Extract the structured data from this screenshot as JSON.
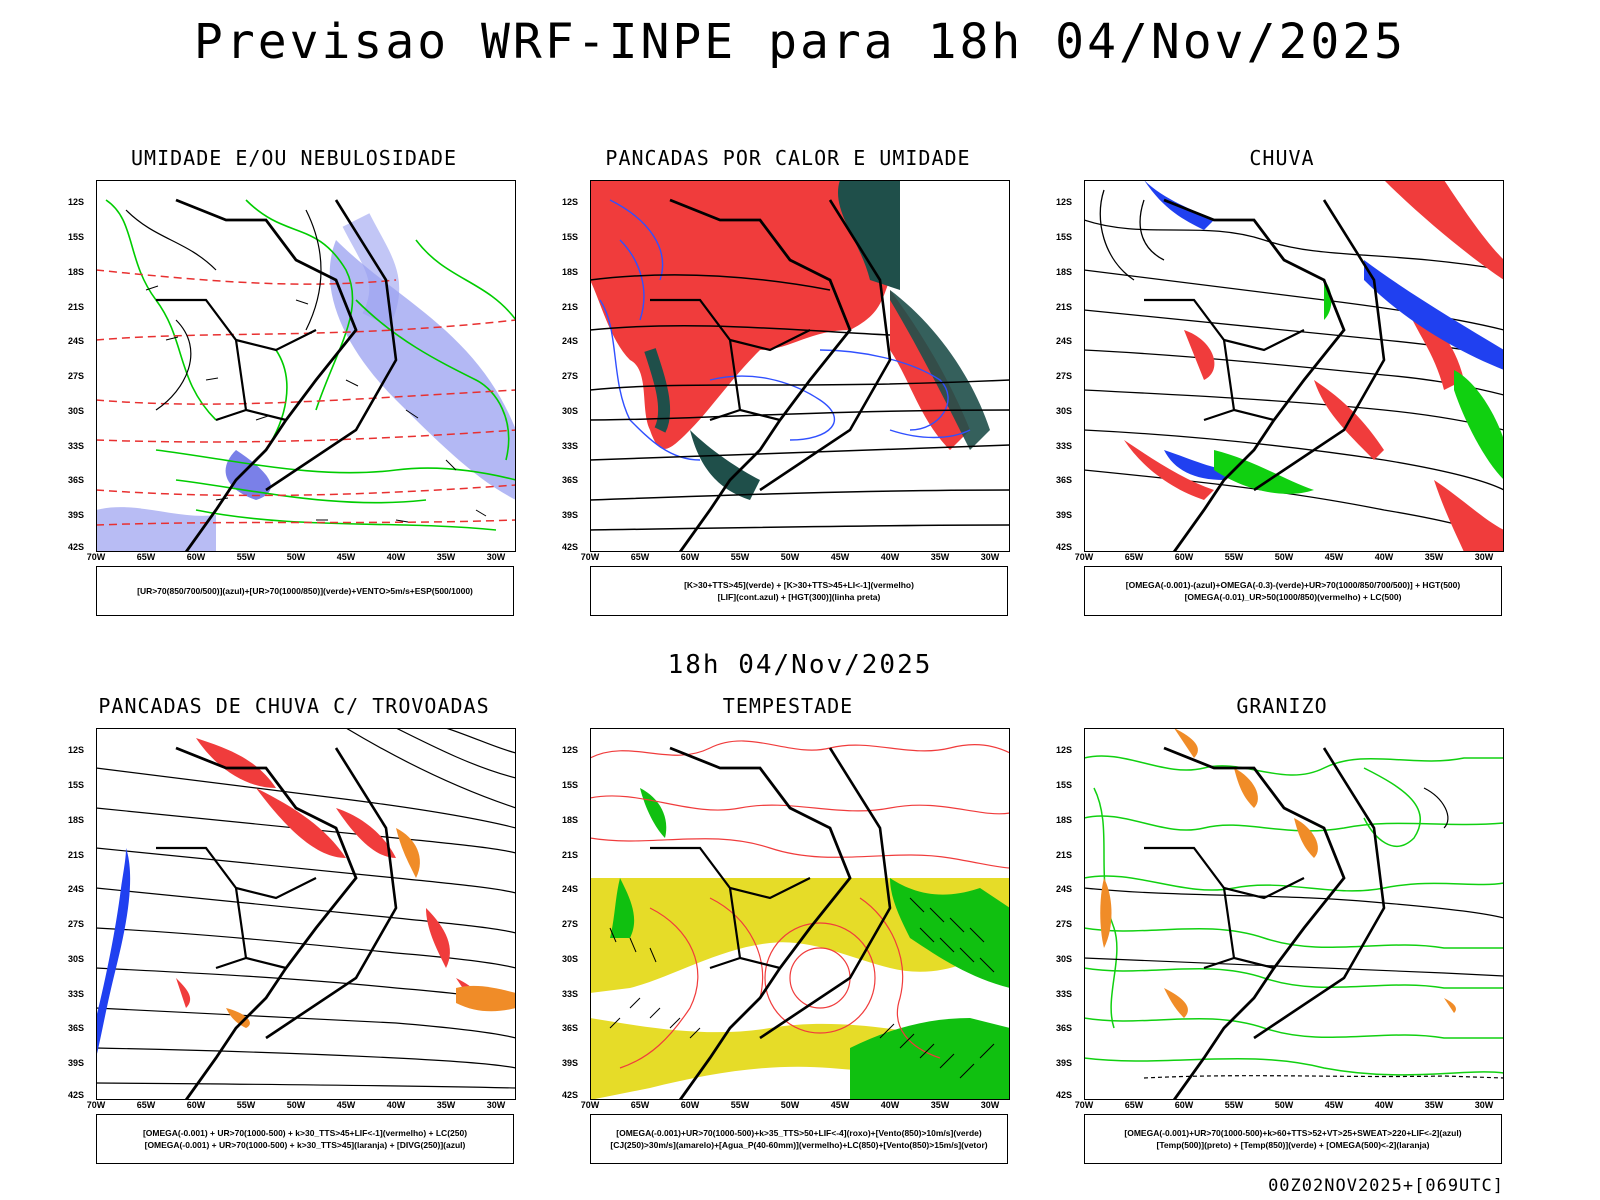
{
  "title": "Previsao WRF-INPE  para 18h 04/Nov/2025",
  "mid_label": "18h 04/Nov/2025",
  "footer": "00Z02NOV2025+[069UTC]",
  "axes": {
    "lat_ticks": [
      "12S",
      "15S",
      "18S",
      "21S",
      "24S",
      "27S",
      "30S",
      "33S",
      "36S",
      "39S",
      "42S"
    ],
    "lon_ticks": [
      "70W",
      "65W",
      "60W",
      "55W",
      "50W",
      "45W",
      "40W",
      "35W",
      "30W"
    ]
  },
  "panels": [
    {
      "title": "UMIDADE E/OU NEBULOSIDADE",
      "caption_lines": [
        "[UR>70(850/700/500)](azul)+[UR>70(1000/850)](verde)+VENTO>5m/s+ESP(500/1000)"
      ],
      "colors": {
        "fill": "#9aa0f0",
        "contour": "#00cc00",
        "dashed": "#e83030"
      }
    },
    {
      "title": "PANCADAS POR CALOR E UMIDADE",
      "caption_lines": [
        "[K>30+TTS>45](verde) + [K>30+TTS>45+LI<-1](vermelho)",
        "[LIF](cont.azul) + [HGT(300)](linha preta)"
      ],
      "colors": {
        "fill": "#f03c3c",
        "dark": "#1f4f4a",
        "contour": "#3050ff"
      }
    },
    {
      "title": "CHUVA",
      "caption_lines": [
        "[OMEGA(-0.001)-(azul)+OMEGA(-0.3)-(verde)+UR>70(1000/850/700/500)] + HGT(500)",
        "[OMEGA(-0.01)_UR>50(1000/850)(vermelho) + LC(500)"
      ],
      "colors": {
        "red": "#f03c3c",
        "blue": "#2040f0",
        "green": "#10d010"
      }
    },
    {
      "title": "PANCADAS DE CHUVA C/ TROVOADAS",
      "caption_lines": [
        "[OMEGA(-0.001) + UR>70(1000-500) + k>30_TTS>45+LIF<-1](vermelho) + LC(250)",
        "[OMEGA(-0.001) + UR>70(1000-500) + k>30_TTS>45](laranja) + [DIVG(250)](azul)"
      ],
      "colors": {
        "red": "#f03c3c",
        "blue": "#2040f0",
        "orange": "#f08c28"
      }
    },
    {
      "title": "TEMPESTADE",
      "caption_lines": [
        "[OMEGA(-0.001)+UR>70(1000-500)+k>35_TTS>50+LIF<-4](roxo)+[Vento(850)>10m/s](verde)",
        "[CJ(250)>30m/s](amarelo)+[Agua_P(40-60mm)](vermelho)+LC(850)+[Vento(850)>15m/s](vetor)"
      ],
      "colors": {
        "yellow": "#e6dc28",
        "green": "#10c010",
        "red": "#f03c3c"
      }
    },
    {
      "title": "GRANIZO",
      "caption_lines": [
        "[OMEGA(-0.001)+UR>70(1000-500)+k>60+TTS>52+VT>25+SWEAT>220+LIF<-2](azul)",
        "[Temp(500)](preto) + [Temp(850)](verde) + [OMEGA(500)<-2](laranja)"
      ],
      "colors": {
        "green": "#10d010",
        "orange": "#f08c28",
        "black": "#000000"
      }
    }
  ]
}
